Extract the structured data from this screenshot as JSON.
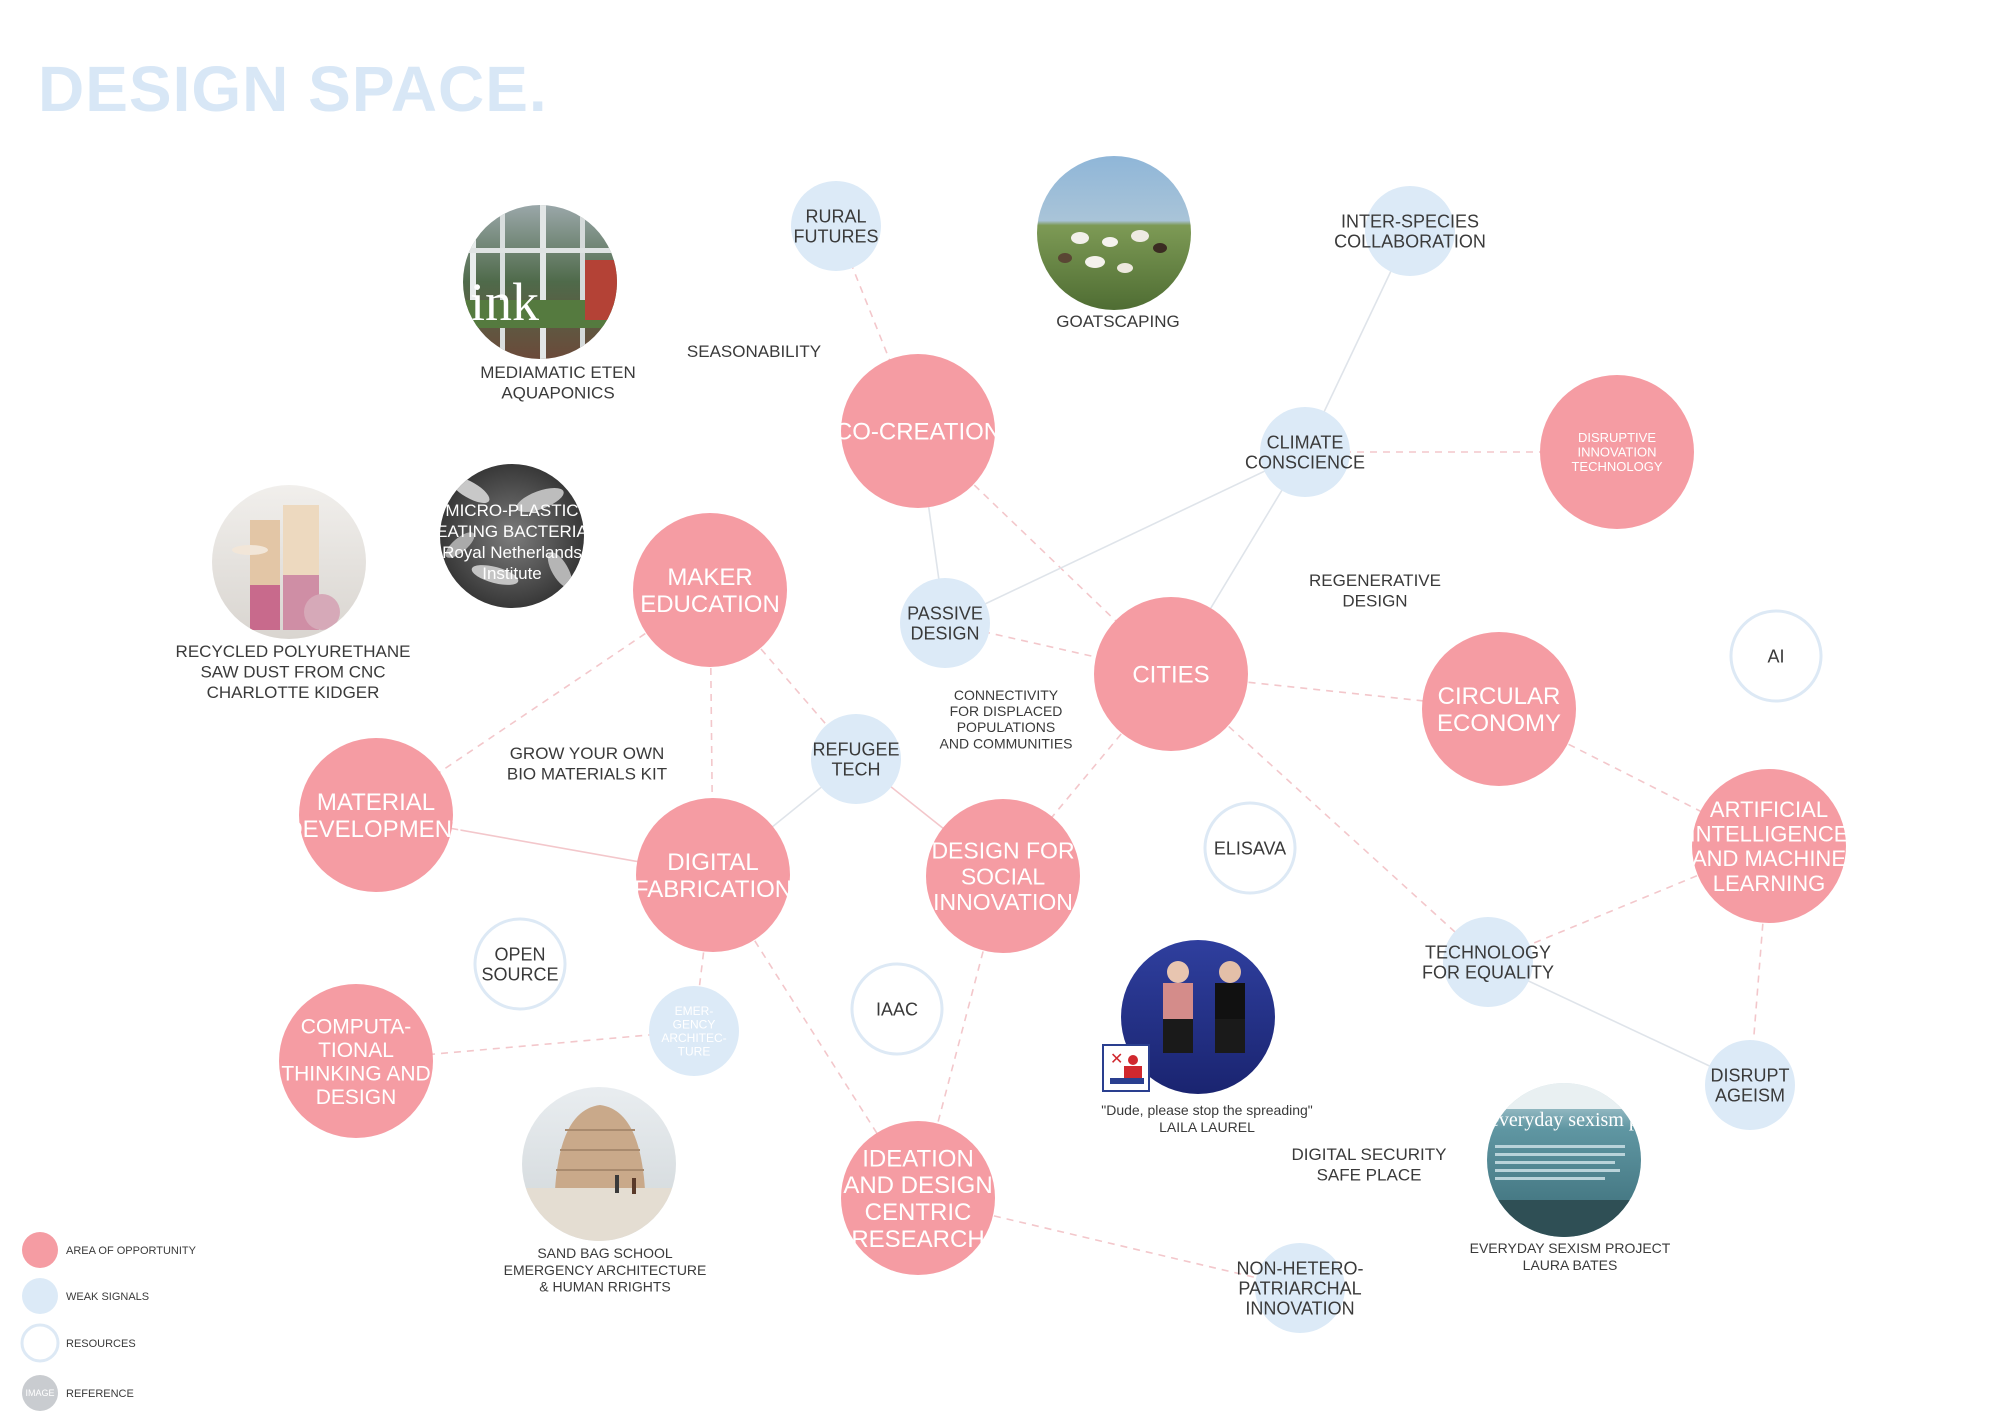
{
  "title": "DESIGN SPACE.",
  "colors": {
    "opportunity": "#f59ca3",
    "weak_signal": "#dceaf7",
    "resource_border": "#dde9f5",
    "reference": "#c9ccd0",
    "label_text": "#3a3a3a",
    "dashed_edge": "#f3c7cb",
    "solid_edge": "#dfe4ea",
    "title": "#d8e7f6"
  },
  "nodes": [
    {
      "id": "co-creation",
      "kind": "opportunity",
      "lines": [
        "CO-CREATION"
      ]
    },
    {
      "id": "maker-education",
      "kind": "opportunity",
      "lines": [
        "MAKER",
        "EDUCATION"
      ]
    },
    {
      "id": "cities",
      "kind": "opportunity",
      "lines": [
        "CITIES"
      ]
    },
    {
      "id": "disruptive-innovation",
      "kind": "opportunity",
      "lines": [
        "DISRUPTIVE",
        "INNOVATION",
        "TECHNOLOGY"
      ]
    },
    {
      "id": "circular-economy",
      "kind": "opportunity",
      "lines": [
        "CIRCULAR",
        "ECONOMY"
      ]
    },
    {
      "id": "material-development",
      "kind": "opportunity",
      "lines": [
        "MATERIAL",
        "DEVELOPMENT"
      ]
    },
    {
      "id": "digital-fabrication",
      "kind": "opportunity",
      "lines": [
        "DIGITAL",
        "FABRICATION"
      ]
    },
    {
      "id": "design-social-innovation",
      "kind": "opportunity",
      "lines": [
        "DESIGN FOR",
        "SOCIAL",
        "INNOVATION"
      ]
    },
    {
      "id": "ai-ml",
      "kind": "opportunity",
      "lines": [
        "ARTIFICIAL",
        "INTELLIGENCE",
        "AND MACHINE",
        "LEARNING"
      ]
    },
    {
      "id": "computational-thinking",
      "kind": "opportunity",
      "lines": [
        "COMPUTA-",
        "TIONAL",
        "THINKING AND",
        "DESIGN"
      ]
    },
    {
      "id": "ideation-research",
      "kind": "opportunity",
      "lines": [
        "IDEATION",
        "AND DESIGN",
        "CENTRIC",
        "RESEARCH"
      ]
    },
    {
      "id": "rural-futures",
      "kind": "weak",
      "lines": [
        "RURAL",
        "FUTURES"
      ]
    },
    {
      "id": "inter-species",
      "kind": "weak",
      "lines": [
        "INTER-SPECIES",
        "COLLABORATION"
      ]
    },
    {
      "id": "climate-conscience",
      "kind": "weak",
      "lines": [
        "CLIMATE",
        "CONSCIENCE"
      ]
    },
    {
      "id": "passive-design",
      "kind": "weak",
      "lines": [
        "PASSIVE",
        "DESIGN"
      ]
    },
    {
      "id": "refugee-tech",
      "kind": "weak",
      "lines": [
        "REFUGEE",
        "TECH"
      ]
    },
    {
      "id": "emergency-architecture",
      "kind": "weak",
      "lines": [
        "EMER-",
        "GENCY",
        "ARCHITEC-",
        "TURE"
      ]
    },
    {
      "id": "technology-equality",
      "kind": "weak",
      "lines": [
        "TECHNOLOGY",
        "FOR EQUALITY"
      ]
    },
    {
      "id": "disrupt-ageism",
      "kind": "weak",
      "lines": [
        "DISRUPT",
        "AGEISM"
      ]
    },
    {
      "id": "non-hetero",
      "kind": "weak",
      "lines": [
        "NON-HETERO-",
        "PATRIARCHAL",
        "INNOVATION"
      ]
    },
    {
      "id": "ai",
      "kind": "resource",
      "lines": [
        "AI"
      ]
    },
    {
      "id": "elisava",
      "kind": "resource",
      "lines": [
        "ELISAVA"
      ]
    },
    {
      "id": "open-source",
      "kind": "resource",
      "lines": [
        "OPEN",
        "SOURCE"
      ]
    },
    {
      "id": "iaac",
      "kind": "resource",
      "lines": [
        "IAAC"
      ]
    }
  ],
  "references": [
    {
      "id": "mediamatic",
      "image": "greenhouse-photo",
      "caption": [
        "MEDIAMATIC ETEN",
        "AQUAPONICS"
      ]
    },
    {
      "id": "goatscaping",
      "image": "goats-photo",
      "caption": [
        "GOATSCAPING"
      ]
    },
    {
      "id": "microplastic",
      "image": "bacteria-photo",
      "overlay": [
        "MICRO-PLASTIC",
        "EATING BACTERIA",
        "Royal Netherlands",
        "Institute"
      ],
      "caption": []
    },
    {
      "id": "recycled-polyurethane",
      "image": "stools-photo",
      "caption": [
        "RECYCLED POLYURETHANE",
        "SAW DUST FROM CNC",
        "CHARLOTTE KIDGER"
      ]
    },
    {
      "id": "laila-laurel",
      "image": "chairs-photo",
      "caption": [
        "\"Dude, please stop the spreading\"",
        "LAILA LAUREL"
      ]
    },
    {
      "id": "everyday-sexism",
      "image": "website-photo",
      "overlay": [
        "everyday sexism p"
      ],
      "caption": [
        "EVERYDAY SEXISM PROJECT",
        "LAURA BATES"
      ]
    },
    {
      "id": "sand-bag-school",
      "image": "dome-photo",
      "caption": [
        "SAND BAG SCHOOL",
        "EMERGENCY ARCHITECTURE",
        "& HUMAN RRIGHTS"
      ]
    }
  ],
  "free_labels": [
    {
      "id": "seasonability",
      "lines": [
        "SEASONABILITY"
      ]
    },
    {
      "id": "regenerative-design",
      "lines": [
        "REGENERATIVE",
        "DESIGN"
      ]
    },
    {
      "id": "grow-bio-materials",
      "lines": [
        "GROW YOUR OWN",
        "BIO MATERIALS KIT"
      ]
    },
    {
      "id": "connectivity",
      "lines": [
        "CONNECTIVITY",
        "FOR DISPLACED",
        "POPULATIONS",
        "AND COMMUNITIES"
      ]
    },
    {
      "id": "digital-security",
      "lines": [
        "DIGITAL SECURITY",
        "SAFE PLACE"
      ]
    }
  ],
  "edges": [
    {
      "from": "rural-futures",
      "to": "co-creation",
      "style": "dashed"
    },
    {
      "from": "co-creation",
      "to": "passive-design",
      "style": "solid"
    },
    {
      "from": "co-creation",
      "to": "cities",
      "style": "dashed"
    },
    {
      "from": "inter-species",
      "to": "climate-conscience",
      "style": "solid"
    },
    {
      "from": "climate-conscience",
      "to": "disruptive-innovation",
      "style": "dashed"
    },
    {
      "from": "climate-conscience",
      "to": "passive-design",
      "style": "solid"
    },
    {
      "from": "climate-conscience",
      "to": "cities",
      "style": "solid"
    },
    {
      "from": "passive-design",
      "to": "cities",
      "style": "dashed"
    },
    {
      "from": "maker-education",
      "to": "material-development",
      "style": "dashed"
    },
    {
      "from": "maker-education",
      "to": "digital-fabrication",
      "style": "dashed"
    },
    {
      "from": "maker-education",
      "to": "refugee-tech",
      "style": "dashed"
    },
    {
      "from": "refugee-tech",
      "to": "design-social-innovation",
      "style": "pink"
    },
    {
      "from": "refugee-tech",
      "to": "digital-fabrication",
      "style": "solid"
    },
    {
      "from": "cities",
      "to": "circular-economy",
      "style": "dashed"
    },
    {
      "from": "cities",
      "to": "design-social-innovation",
      "style": "dashed"
    },
    {
      "from": "cities",
      "to": "technology-equality",
      "style": "dashed"
    },
    {
      "from": "circular-economy",
      "to": "ai-ml",
      "style": "dashed"
    },
    {
      "from": "ai-ml",
      "to": "technology-equality",
      "style": "dashed"
    },
    {
      "from": "ai-ml",
      "to": "disrupt-ageism",
      "style": "dashed"
    },
    {
      "from": "technology-equality",
      "to": "disrupt-ageism",
      "style": "solid"
    },
    {
      "from": "material-development",
      "to": "digital-fabrication",
      "style": "pink"
    },
    {
      "from": "digital-fabrication",
      "to": "emergency-architecture",
      "style": "dashed"
    },
    {
      "from": "digital-fabrication",
      "to": "ideation-research",
      "style": "dashed"
    },
    {
      "from": "emergency-architecture",
      "to": "computational-thinking",
      "style": "dashed"
    },
    {
      "from": "design-social-innovation",
      "to": "ideation-research",
      "style": "dashed"
    },
    {
      "from": "ideation-research",
      "to": "non-hetero",
      "style": "dashed"
    }
  ],
  "legend": [
    {
      "kind": "opportunity",
      "label": "AREA OF OPPORTUNITY"
    },
    {
      "kind": "weak",
      "label": "WEAK SIGNALS"
    },
    {
      "kind": "resource",
      "label": "RESOURCES"
    },
    {
      "kind": "reference",
      "label": "REFERENCE",
      "swatch_text": "IMAGE"
    }
  ]
}
